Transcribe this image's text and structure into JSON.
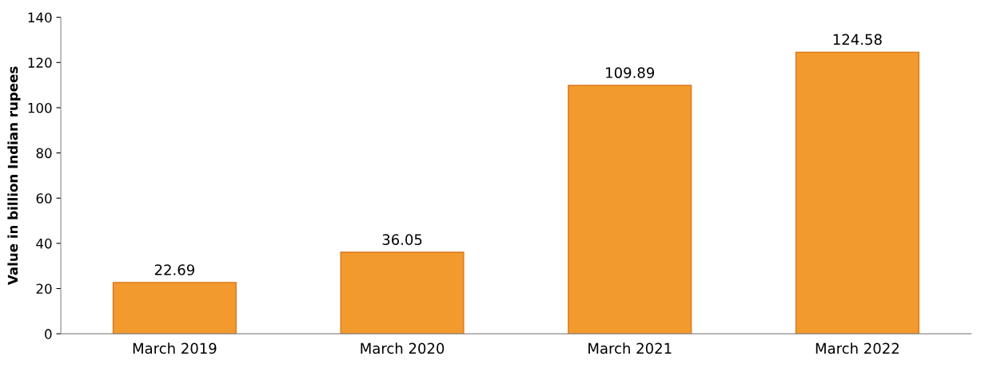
{
  "chart_data": {
    "type": "bar",
    "ylabel": "Value in billion Indian rupees",
    "categories": [
      "March 2019",
      "March 2020",
      "March 2021",
      "March 2022"
    ],
    "values": [
      22.69,
      36.05,
      109.89,
      124.58
    ],
    "color": "#f39a2e",
    "ylim": [
      0,
      140
    ],
    "yticks": [
      0,
      20,
      40,
      60,
      80,
      100,
      120,
      140
    ],
    "data_labels": true,
    "grid": false,
    "legend": false
  }
}
